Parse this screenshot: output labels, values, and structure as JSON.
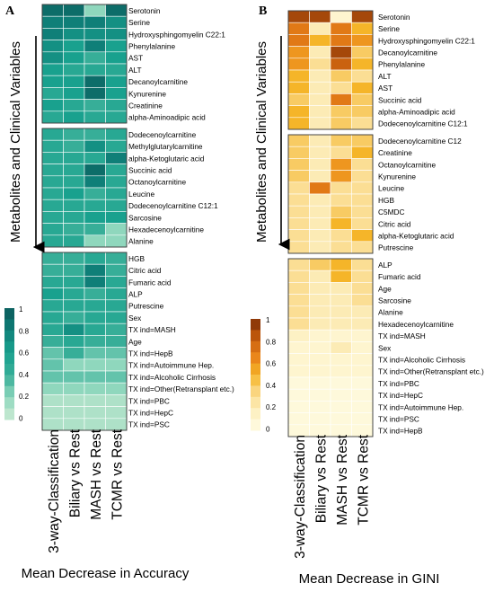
{
  "chart_data": [
    {
      "type": "heatmap",
      "panel_label": "A",
      "ylabel": "Metabolites and Clinical Variables",
      "xlabel": "Mean Decrease in Accuracy",
      "columns": [
        "3-way-Classification",
        "Biliary vs Rest",
        "MASH vs Rest",
        "TCMR vs Rest"
      ],
      "colorbar": {
        "ticks": [
          "1",
          "0.8",
          "0.6",
          "0.4",
          "0.2",
          "0"
        ],
        "range": [
          0,
          1
        ],
        "colors": [
          "#ccebd3",
          "#8fd7bd",
          "#37ae98",
          "#19a18e",
          "#0f7f78",
          "#0b5a5a"
        ]
      },
      "groups": [
        {
          "rows": [
            {
              "label": "Serotonin",
              "values": [
                0.9,
                0.9,
                0.2,
                0.9
              ]
            },
            {
              "label": "Serine",
              "values": [
                0.8,
                0.8,
                0.8,
                0.7
              ]
            },
            {
              "label": "Hydroxysphingomyelin C22:1",
              "values": [
                0.8,
                0.7,
                0.7,
                0.7
              ]
            },
            {
              "label": "Phenylalanine",
              "values": [
                0.7,
                0.6,
                0.8,
                0.6
              ]
            },
            {
              "label": "AST",
              "values": [
                0.7,
                0.6,
                0.4,
                0.6
              ]
            },
            {
              "label": "ALT",
              "values": [
                0.6,
                0.5,
                0.5,
                0.5
              ]
            },
            {
              "label": "Decanoylcarnitine",
              "values": [
                0.6,
                0.6,
                0.9,
                0.6
              ]
            },
            {
              "label": "Kynurenine",
              "values": [
                0.5,
                0.6,
                0.9,
                0.6
              ]
            },
            {
              "label": "Creatinine",
              "values": [
                0.6,
                0.5,
                0.4,
                0.5
              ]
            },
            {
              "label": "alpha-Aminoadipic acid",
              "values": [
                0.5,
                0.6,
                0.5,
                0.5
              ]
            }
          ]
        },
        {
          "rows": [
            {
              "label": "Dodecenoylcarnitine",
              "values": [
                0.5,
                0.4,
                0.4,
                0.5
              ]
            },
            {
              "label": "Methylglutarylcarnitine",
              "values": [
                0.5,
                0.4,
                0.7,
                0.5
              ]
            },
            {
              "label": "alpha-Ketoglutaric acid",
              "values": [
                0.5,
                0.5,
                0.5,
                0.8
              ]
            },
            {
              "label": "Succinic acid",
              "values": [
                0.5,
                0.5,
                0.9,
                0.5
              ]
            },
            {
              "label": "Octanoylcarnitine",
              "values": [
                0.5,
                0.5,
                0.8,
                0.5
              ]
            },
            {
              "label": "Leucine",
              "values": [
                0.5,
                0.6,
                0.4,
                0.5
              ]
            },
            {
              "label": "Dodecenoylcarnitine C12:1",
              "values": [
                0.5,
                0.5,
                0.5,
                0.5
              ]
            },
            {
              "label": "Sarcosine",
              "values": [
                0.5,
                0.5,
                0.6,
                0.6
              ]
            },
            {
              "label": "Hexadecenoylcarnitine",
              "values": [
                0.5,
                0.4,
                0.4,
                0.2
              ]
            },
            {
              "label": "Alanine",
              "values": [
                0.5,
                0.5,
                0.2,
                0.2
              ]
            }
          ]
        },
        {
          "rows": [
            {
              "label": "HGB",
              "values": [
                0.4,
                0.4,
                0.5,
                0.4
              ]
            },
            {
              "label": "Citric acid",
              "values": [
                0.4,
                0.4,
                0.8,
                0.4
              ]
            },
            {
              "label": "Fumaric acid",
              "values": [
                0.5,
                0.5,
                0.8,
                0.5
              ]
            },
            {
              "label": "ALP",
              "values": [
                0.6,
                0.5,
                0.4,
                0.5
              ]
            },
            {
              "label": "Putrescine",
              "values": [
                0.5,
                0.5,
                0.5,
                0.5
              ]
            },
            {
              "label": "Sex",
              "values": [
                0.5,
                0.4,
                0.5,
                0.5
              ]
            },
            {
              "label": "TX ind=MASH",
              "values": [
                0.5,
                0.7,
                0.5,
                0.4
              ]
            },
            {
              "label": "Age",
              "values": [
                0.4,
                0.5,
                0.4,
                0.4
              ]
            },
            {
              "label": "TX ind=HepB",
              "values": [
                0.3,
                0.4,
                0.3,
                0.3
              ]
            },
            {
              "label": "TX ind=Autoimmune Hep.",
              "values": [
                0.3,
                0.2,
                0.2,
                0.2
              ]
            },
            {
              "label": "TX ind=Alcoholic Cirrhosis",
              "values": [
                0.3,
                0.3,
                0.3,
                0.3
              ]
            },
            {
              "label": "TX ind=Other(Retransplant etc.)",
              "values": [
                0.2,
                0.2,
                0.2,
                0.2
              ]
            },
            {
              "label": "TX ind=PBC",
              "values": [
                0.1,
                0.1,
                0.1,
                0.1
              ]
            },
            {
              "label": "TX ind=HepC",
              "values": [
                0.1,
                0.1,
                0.1,
                0.1
              ]
            },
            {
              "label": "TX ind=PSC",
              "values": [
                0.1,
                0.1,
                0.1,
                0.1
              ]
            }
          ]
        }
      ]
    },
    {
      "type": "heatmap",
      "panel_label": "B",
      "ylabel": "Metabolites and Clinical Variables",
      "xlabel": "Mean Decrease in GINI",
      "columns": [
        "3-way-Classification",
        "Biliary vs Rest",
        "MASH vs Rest",
        "TCMR vs Rest"
      ],
      "colorbar": {
        "ticks": [
          "1",
          "0.8",
          "0.6",
          "0.4",
          "0.2",
          "0"
        ],
        "range": [
          0,
          1
        ],
        "colors": [
          "#fffde6",
          "#fdf0c0",
          "#fad989",
          "#f5b529",
          "#e98119",
          "#c25a0c",
          "#7a2c06"
        ]
      },
      "groups": [
        {
          "rows": [
            {
              "label": "Serotonin",
              "values": [
                0.9,
                0.9,
                0.1,
                0.9
              ]
            },
            {
              "label": "Serine",
              "values": [
                0.7,
                0.2,
                0.7,
                0.5
              ]
            },
            {
              "label": "Hydroxysphingomyelin C22:1",
              "values": [
                0.7,
                0.5,
                0.7,
                0.6
              ]
            },
            {
              "label": "Decanoylcarnitine",
              "values": [
                0.6,
                0.2,
                0.9,
                0.4
              ]
            },
            {
              "label": "Phenylalanine",
              "values": [
                0.6,
                0.3,
                0.8,
                0.5
              ]
            },
            {
              "label": "ALT",
              "values": [
                0.5,
                0.2,
                0.4,
                0.3
              ]
            },
            {
              "label": "AST",
              "values": [
                0.5,
                0.2,
                0.3,
                0.5
              ]
            },
            {
              "label": "Succinic acid",
              "values": [
                0.4,
                0.2,
                0.7,
                0.4
              ]
            },
            {
              "label": "alpha-Aminoadipic acid",
              "values": [
                0.5,
                0.2,
                0.4,
                0.4
              ]
            },
            {
              "label": "Dodecenoylcarnitine C12:1",
              "values": [
                0.5,
                0.2,
                0.4,
                0.3
              ]
            }
          ]
        },
        {
          "rows": [
            {
              "label": "Dodecenoylcarnitine C12",
              "values": [
                0.4,
                0.2,
                0.4,
                0.4
              ]
            },
            {
              "label": "Creatinine",
              "values": [
                0.4,
                0.2,
                0.3,
                0.5
              ]
            },
            {
              "label": "Octanoylcarnitine",
              "values": [
                0.4,
                0.2,
                0.6,
                0.3
              ]
            },
            {
              "label": "Kynurenine",
              "values": [
                0.4,
                0.2,
                0.6,
                0.3
              ]
            },
            {
              "label": "Leucine",
              "values": [
                0.3,
                0.7,
                0.3,
                0.3
              ]
            },
            {
              "label": "HGB",
              "values": [
                0.3,
                0.2,
                0.3,
                0.3
              ]
            },
            {
              "label": "C5MDC",
              "values": [
                0.3,
                0.2,
                0.4,
                0.3
              ]
            },
            {
              "label": "Citric acid",
              "values": [
                0.3,
                0.2,
                0.5,
                0.3
              ]
            },
            {
              "label": "alpha-Ketoglutaric acid",
              "values": [
                0.3,
                0.2,
                0.3,
                0.5
              ]
            },
            {
              "label": "Putrescine",
              "values": [
                0.3,
                0.2,
                0.3,
                0.3
              ]
            }
          ]
        },
        {
          "rows": [
            {
              "label": "ALP",
              "values": [
                0.3,
                0.4,
                0.5,
                0.3
              ]
            },
            {
              "label": "Fumaric acid",
              "values": [
                0.3,
                0.2,
                0.5,
                0.3
              ]
            },
            {
              "label": "Age",
              "values": [
                0.3,
                0.2,
                0.2,
                0.3
              ]
            },
            {
              "label": "Sarcosine",
              "values": [
                0.3,
                0.2,
                0.2,
                0.3
              ]
            },
            {
              "label": "Alanine",
              "values": [
                0.3,
                0.2,
                0.2,
                0.2
              ]
            },
            {
              "label": "Hexadecenoylcarnitine",
              "values": [
                0.3,
                0.2,
                0.2,
                0.2
              ]
            },
            {
              "label": "TX ind=MASH",
              "values": [
                0.15,
                0.1,
                0.1,
                0.1
              ]
            },
            {
              "label": "Sex",
              "values": [
                0.1,
                0.1,
                0.2,
                0.1
              ]
            },
            {
              "label": "TX ind=Alcoholic Cirrhosis",
              "values": [
                0.1,
                0.1,
                0.1,
                0.1
              ]
            },
            {
              "label": "TX ind=Other(Retransplant etc.)",
              "values": [
                0.1,
                0.1,
                0.1,
                0.1
              ]
            },
            {
              "label": "TX ind=PBC",
              "values": [
                0.05,
                0.05,
                0.05,
                0.05
              ]
            },
            {
              "label": "TX ind=HepC",
              "values": [
                0.05,
                0.05,
                0.05,
                0.05
              ]
            },
            {
              "label": "TX ind=Autoimmune Hep.",
              "values": [
                0.05,
                0.05,
                0.05,
                0.05
              ]
            },
            {
              "label": "TX ind=PSC",
              "values": [
                0.05,
                0.05,
                0.05,
                0.05
              ]
            },
            {
              "label": "TX ind=HepB",
              "values": [
                0.05,
                0.05,
                0.05,
                0.05
              ]
            }
          ]
        }
      ]
    }
  ]
}
